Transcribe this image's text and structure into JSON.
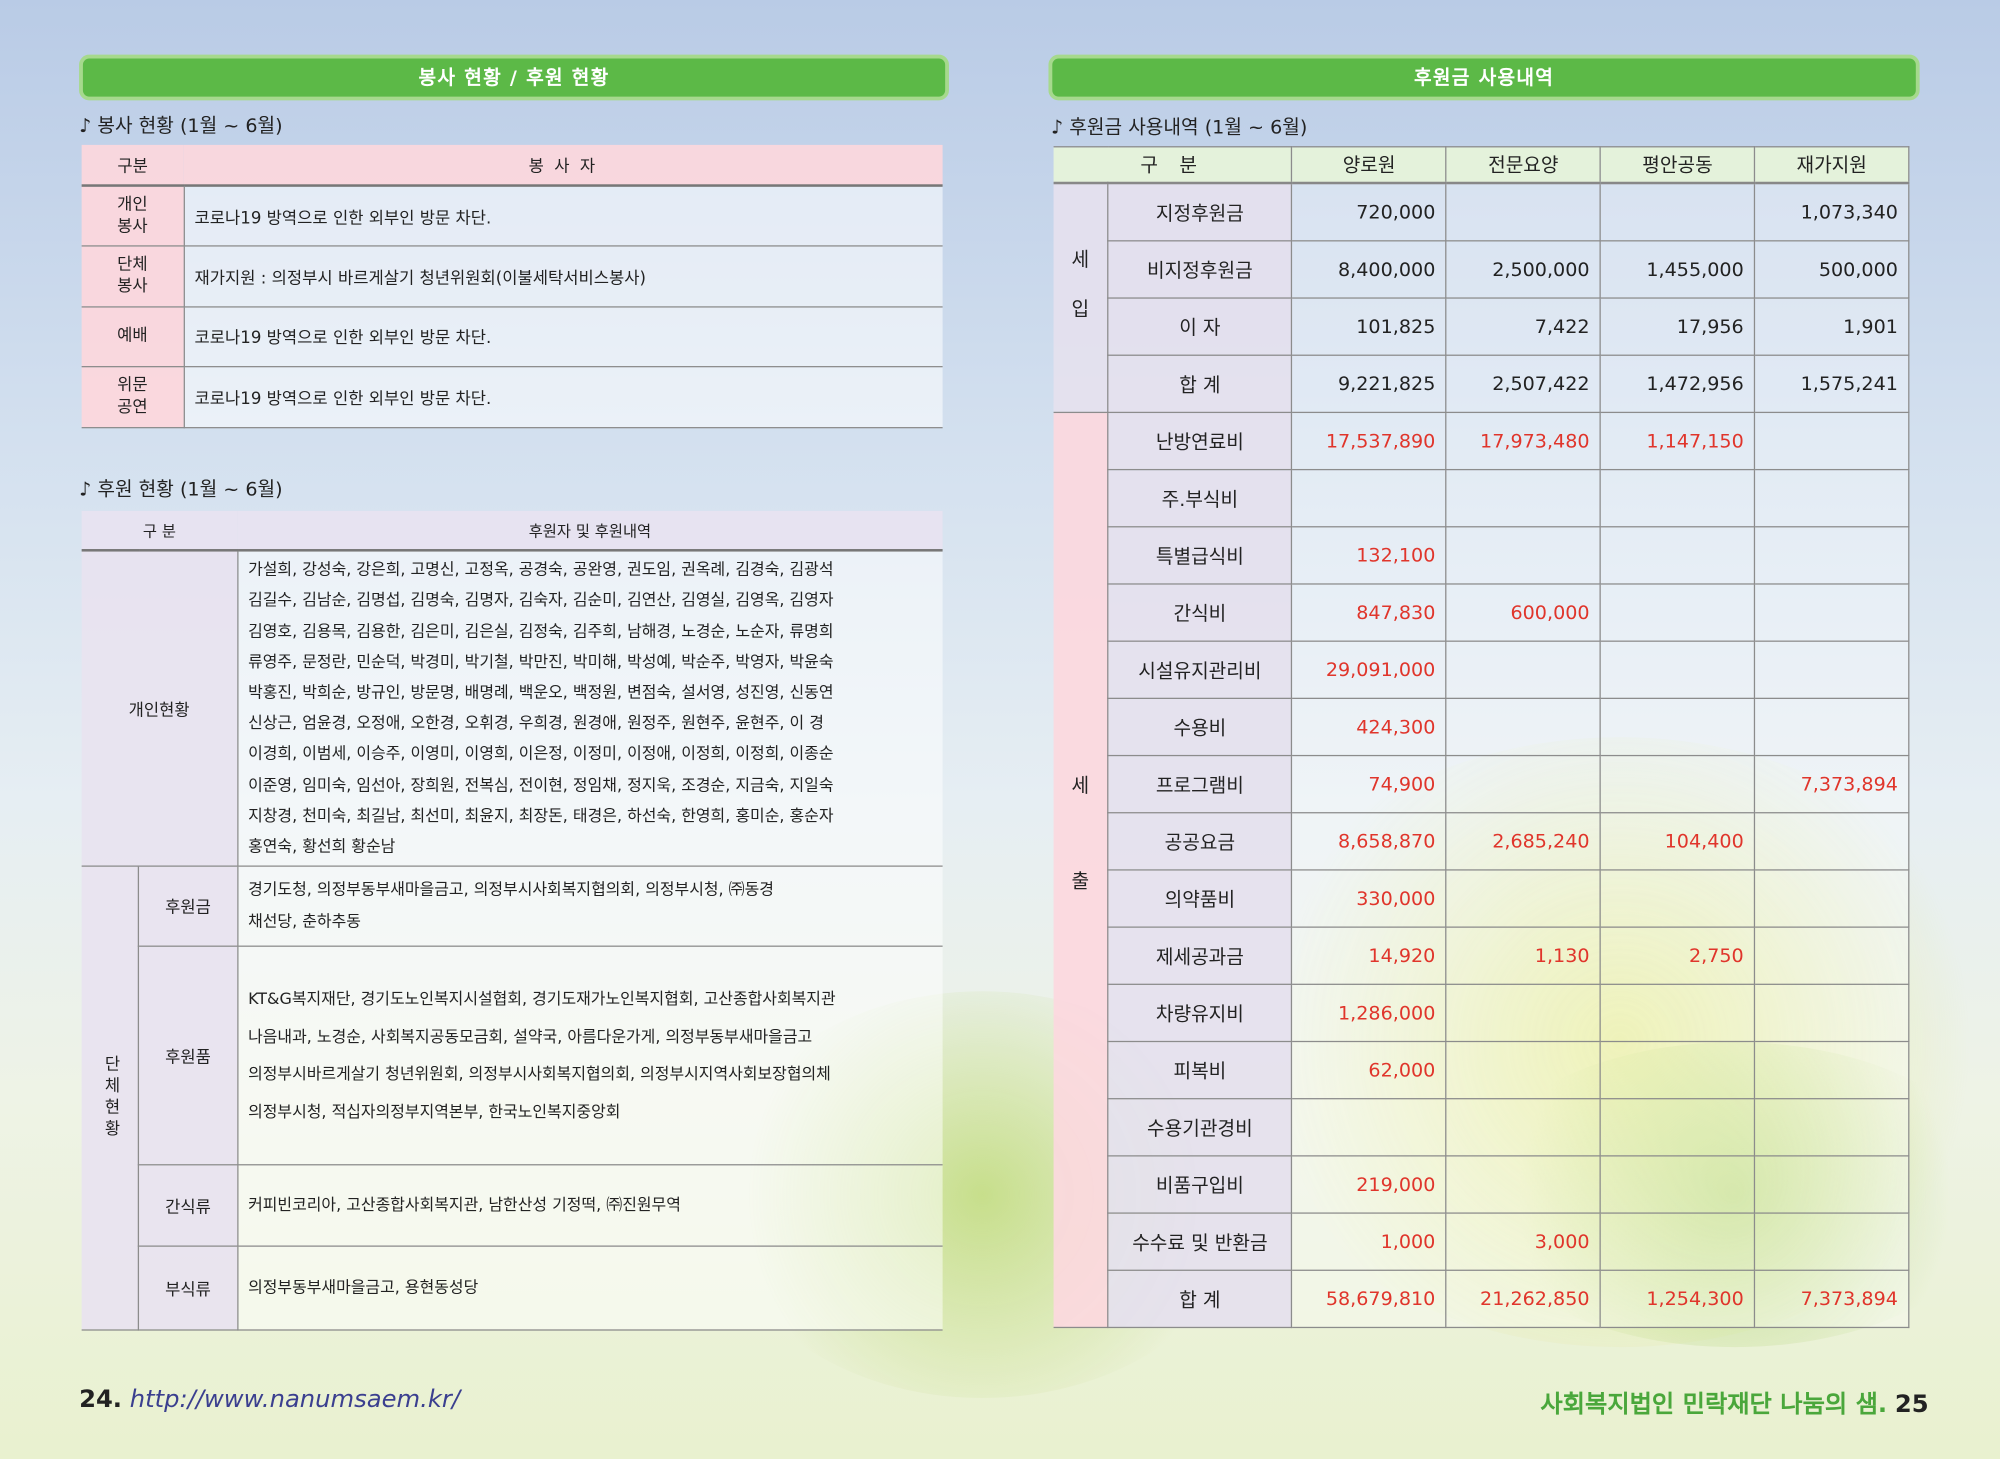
{
  "left": {
    "header": "봉사 현황 / 후원 현황",
    "volunteer": {
      "title": "♪ 봉사 현황 (1월 ~ 6월)",
      "columns": [
        "구분",
        "봉 사 자"
      ],
      "rows": [
        [
          "개인\n봉사",
          "코로나19 방역으로 인한 외부인 방문 차단."
        ],
        [
          "단체\n봉사",
          "재가지원 : 의정부시 바르게살기 청년위원회(이불세탁서비스봉사)"
        ],
        [
          "예배",
          "코로나19 방역으로 인한 외부인 방문 차단."
        ],
        [
          "위문\n공연",
          "코로나19 방역으로 인한 외부인 방문 차단."
        ]
      ]
    },
    "donation": {
      "title": "♪ 후원 현황 (1월 ~ 6월)",
      "columns": [
        "구 분",
        "후원자 및 후원내역"
      ],
      "individual": {
        "label": "개인현황",
        "lines": [
          "가설희, 강성숙, 강은희, 고명신, 고정옥, 공경숙, 공완영, 권도임, 권옥례, 김경숙, 김광석",
          "김길수, 김남순, 김명섭, 김명숙, 김명자, 김숙자, 김순미, 김연산, 김영실, 김영옥, 김영자",
          "김영호, 김용목, 김용한, 김은미, 김은실, 김정숙, 김주희, 남해경, 노경순, 노순자, 류명희",
          "류영주, 문정란, 민순덕, 박경미, 박기철, 박만진, 박미해, 박성예, 박순주, 박영자, 박윤숙",
          "박홍진, 박희순, 방규인, 방문명, 배명례, 백운오, 백정원, 변점숙, 설서영, 성진영, 신동연",
          "신상근, 엄윤경, 오정애, 오한경, 오휘경, 우희경, 원경애, 원정주, 원현주, 윤현주, 이 경",
          "이경희, 이범세, 이승주, 이영미, 이영희, 이은정, 이정미, 이정애, 이정희, 이정희, 이종순",
          "이준영, 임미숙, 임선아, 장희원, 전복심, 전이현, 정임채, 정지욱, 조경순, 지금숙, 지일숙",
          "지창경, 천미숙, 최길남, 최선미, 최윤지, 최장돈, 태경은, 하선숙, 한영희, 홍미순, 홍순자",
          "홍연숙, 황선희 황순남"
        ]
      },
      "group": {
        "label": "단체현황",
        "rows": [
          {
            "label": "후원금",
            "lines": [
              "경기도청, 의정부동부새마을금고, 의정부시사회복지협의회, 의정부시청, ㈜동경",
              "채선당, 춘하추동"
            ]
          },
          {
            "label": "후원품",
            "lines": [
              "KT&G복지재단, 경기도노인복지시설협회, 경기도재가노인복지협회, 고산종합사회복지관",
              "나음내과, 노경순, 사회복지공동모금회, 설약국, 아름다운가게, 의정부동부새마을금고",
              "의정부시바르게살기 청년위원회, 의정부시사회복지협의회, 의정부시지역사회보장협의체",
              "의정부시청, 적십자의정부지역본부, 한국노인복지중앙회"
            ]
          },
          {
            "label": "간식류",
            "lines": [
              "커피빈코리아, 고산종합사회복지관, 남한산성 기정떡, ㈜진원무역"
            ]
          },
          {
            "label": "부식류",
            "lines": [
              "의정부동부새마을금고, 용현동성당"
            ]
          }
        ]
      }
    }
  },
  "right": {
    "header": "후원금 사용내역",
    "title": "♪ 후원금 사용내역 (1월 ~ 6월)",
    "columns": [
      "구 분",
      "양로원",
      "전문요양",
      "평안공동",
      "재가지원"
    ],
    "sections": [
      {
        "label": "세입",
        "rows": [
          {
            "item": "지정후원금",
            "values": [
              "720,000",
              null,
              null,
              "1,073,340"
            ]
          },
          {
            "item": "비지정후원금",
            "values": [
              "8,400,000",
              "2,500,000",
              "1,455,000",
              "500,000"
            ]
          },
          {
            "item": "이 자",
            "values": [
              "101,825",
              "7,422",
              "17,956",
              "1,901"
            ]
          },
          {
            "item": "합 계",
            "values": [
              "9,221,825",
              "2,507,422",
              "1,472,956",
              "1,575,241"
            ]
          }
        ]
      },
      {
        "label": "세출",
        "rows": [
          {
            "item": "난방연료비",
            "values": [
              "17,537,890",
              "17,973,480",
              "1,147,150",
              null
            ]
          },
          {
            "item": "주.부식비",
            "values": [
              null,
              null,
              null,
              null
            ]
          },
          {
            "item": "특별급식비",
            "values": [
              "132,100",
              null,
              null,
              null
            ]
          },
          {
            "item": "간식비",
            "values": [
              "847,830",
              "600,000",
              null,
              null
            ]
          },
          {
            "item": "시설유지관리비",
            "values": [
              "29,091,000",
              null,
              null,
              null
            ]
          },
          {
            "item": "수용비",
            "values": [
              "424,300",
              null,
              null,
              null
            ]
          },
          {
            "item": "프로그램비",
            "values": [
              "74,900",
              null,
              null,
              "7,373,894"
            ]
          },
          {
            "item": "공공요금",
            "values": [
              "8,658,870",
              "2,685,240",
              "104,400",
              null
            ]
          },
          {
            "item": "의약품비",
            "values": [
              "330,000",
              null,
              null,
              null
            ]
          },
          {
            "item": "제세공과금",
            "values": [
              "14,920",
              "1,130",
              "2,750",
              null
            ]
          },
          {
            "item": "차량유지비",
            "values": [
              "1,286,000",
              null,
              null,
              null
            ]
          },
          {
            "item": "피복비",
            "values": [
              "62,000",
              null,
              null,
              null
            ]
          },
          {
            "item": "수용기관경비",
            "values": [
              null,
              null,
              null,
              null
            ]
          },
          {
            "item": "비품구입비",
            "values": [
              "219,000",
              null,
              null,
              null
            ]
          },
          {
            "item": "수수료 및 반환금",
            "values": [
              "1,000",
              "3,000",
              null,
              null
            ]
          },
          {
            "item": "합 계",
            "values": [
              "58,679,810",
              "21,262,850",
              "1,254,300",
              "7,373,894"
            ]
          }
        ]
      }
    ]
  },
  "footer": {
    "page_left": "24.",
    "url": "http://www.nanumsaem.kr/",
    "org": "사회복지법인 민락재단 나눔의 샘.",
    "page_right": "25"
  }
}
